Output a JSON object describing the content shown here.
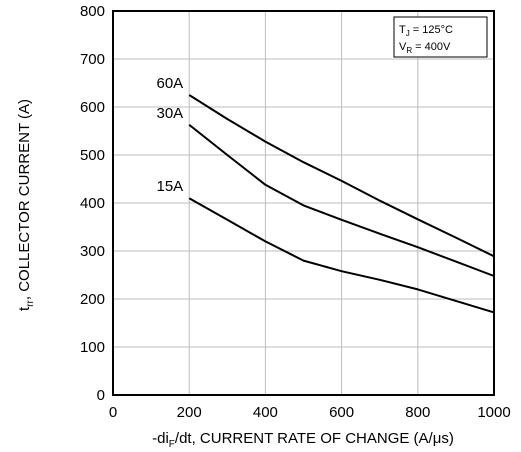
{
  "chart_data": {
    "type": "line",
    "title": "",
    "xlabel": {
      "prefix": "-di",
      "sub": "F",
      "suffix": "/dt, CURRENT RATE OF CHANGE (A/μs)"
    },
    "ylabel": {
      "prefix": "t",
      "sub": "rr",
      "suffix": ", COLLECTOR CURRENT (A)"
    },
    "xlim": [
      0,
      1000
    ],
    "ylim": [
      0,
      800
    ],
    "xticks": [
      "0",
      "200",
      "400",
      "600",
      "800",
      "1000"
    ],
    "yticks": [
      "0",
      "100",
      "200",
      "300",
      "400",
      "500",
      "600",
      "700",
      "800"
    ],
    "grid": true,
    "series": [
      {
        "name": "60A",
        "x": [
          200,
          300,
          400,
          500,
          600,
          700,
          800,
          900,
          1000
        ],
        "y": [
          625,
          575,
          528,
          485,
          446,
          405,
          366,
          328,
          289
        ]
      },
      {
        "name": "30A",
        "x": [
          200,
          300,
          400,
          500,
          600,
          700,
          800,
          900,
          1000
        ],
        "y": [
          563,
          500,
          438,
          395,
          365,
          336,
          308,
          278,
          248
        ]
      },
      {
        "name": "15A",
        "x": [
          200,
          300,
          400,
          500,
          600,
          700,
          800,
          900,
          1000
        ],
        "y": [
          410,
          365,
          320,
          280,
          258,
          240,
          220,
          196,
          172
        ]
      }
    ],
    "legend": {
      "tj": {
        "prefix": "T",
        "sub": "J",
        "suffix": " = 125°C"
      },
      "vr": {
        "prefix": "V",
        "sub": "R",
        "suffix": " = 400V"
      }
    }
  }
}
